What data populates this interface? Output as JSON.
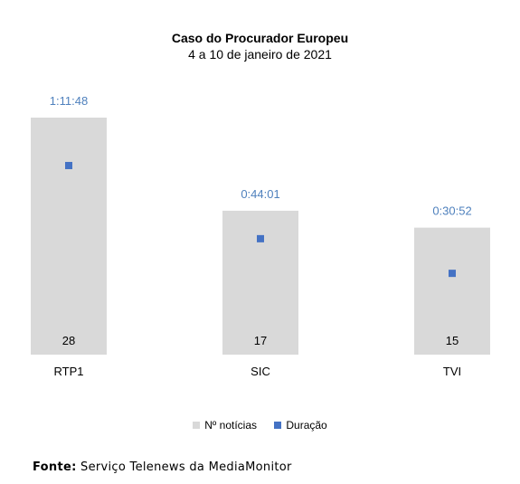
{
  "chart_data": {
    "type": "bar",
    "title": "Caso do Procurador Europeu",
    "subtitle": "4 a 10 de janeiro de 2021",
    "categories": [
      "RTP1",
      "SIC",
      "TVI"
    ],
    "series": [
      {
        "name": "Nº notícias",
        "type": "bar",
        "values": [
          28,
          17,
          15
        ],
        "color": "#d9d9d9"
      },
      {
        "name": "Duração",
        "type": "scatter",
        "values": [
          "1:11:48",
          "0:44:01",
          "0:30:52"
        ],
        "color": "#4472c4"
      }
    ],
    "axes": {
      "primary_ylim": [
        0,
        30
      ],
      "secondary_ylim_seconds": [
        0,
        5400
      ]
    },
    "data_label_colors": {
      "bar": "#000000",
      "duracao": "#4f81bd"
    },
    "grid": false,
    "legend": "bottom"
  },
  "source": {
    "label": "Fonte:",
    "text": "Serviço Telenews da MediaMonitor"
  }
}
